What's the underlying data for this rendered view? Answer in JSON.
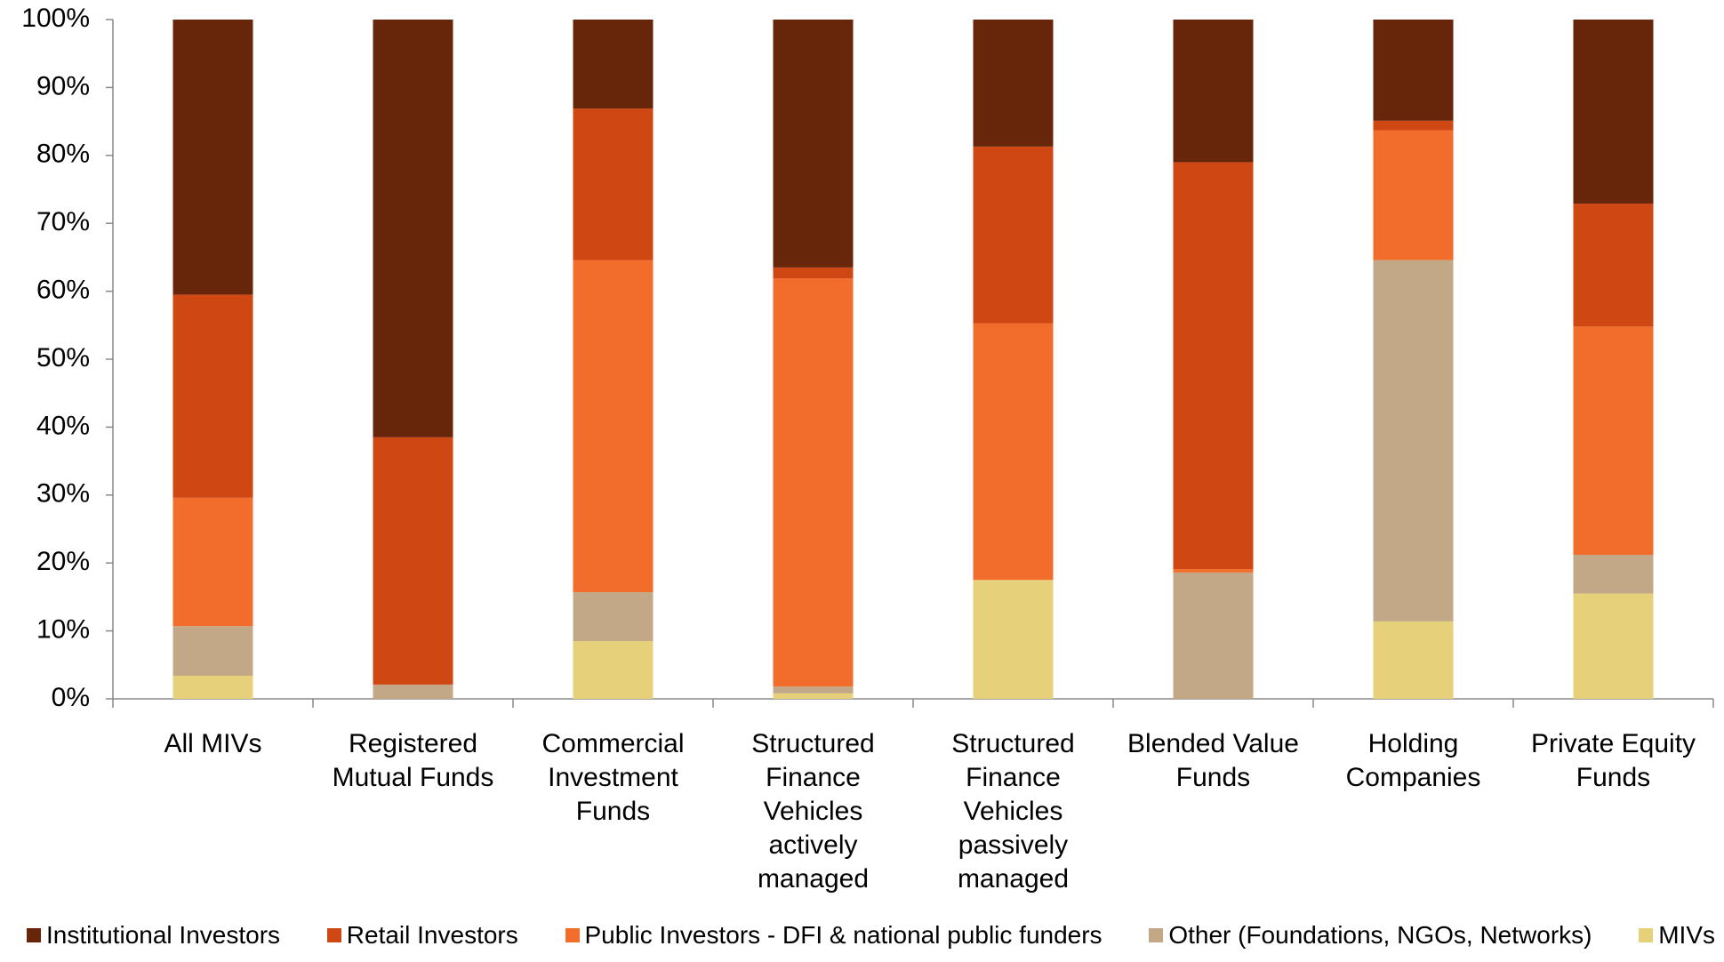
{
  "chart_data": {
    "type": "stacked_bar",
    "categories": [
      "All MIVs",
      "Registered Mutual Funds",
      "Commercial Investment Funds",
      "Structured Finance Vehicles actively managed",
      "Structured Finance Vehicles passively managed",
      "Blended Value Funds",
      "Holding Companies",
      "Private Equity Funds"
    ],
    "series": [
      {
        "name": "Institutional Investors",
        "color": "#67250a",
        "values": [
          40.5,
          61.5,
          13.1,
          36.5,
          18.7,
          21.0,
          14.9,
          27.1
        ]
      },
      {
        "name": "Retail Investors",
        "color": "#cf4713",
        "values": [
          29.9,
          36.4,
          22.3,
          1.6,
          26.0,
          59.9,
          1.4,
          18.1
        ]
      },
      {
        "name": "Public Investors - DFI & national public funders",
        "color": "#f26c2b",
        "values": [
          18.9,
          0,
          48.9,
          60.1,
          37.8,
          0.5,
          19.1,
          33.6
        ]
      },
      {
        "name": "Other (Foundations, NGOs, Networks)",
        "color": "#c2a886",
        "values": [
          7.3,
          2.1,
          7.2,
          1.0,
          0,
          18.6,
          53.2,
          5.7
        ]
      },
      {
        "name": "MIVs",
        "color": "#e6d07a",
        "values": [
          3.4,
          0,
          8.5,
          0.8,
          17.5,
          0,
          11.4,
          15.5
        ]
      }
    ],
    "ylim": [
      0,
      100
    ],
    "yticks": [
      {
        "value": 0,
        "label": "0%"
      },
      {
        "value": 10,
        "label": "10%"
      },
      {
        "value": 20,
        "label": "20%"
      },
      {
        "value": 30,
        "label": "30%"
      },
      {
        "value": 40,
        "label": "40%"
      },
      {
        "value": 50,
        "label": "50%"
      },
      {
        "value": 60,
        "label": "60%"
      },
      {
        "value": 70,
        "label": "70%"
      },
      {
        "value": 80,
        "label": "80%"
      },
      {
        "value": 90,
        "label": "90%"
      },
      {
        "value": 100,
        "label": "100%"
      }
    ],
    "legend": "bottom"
  }
}
